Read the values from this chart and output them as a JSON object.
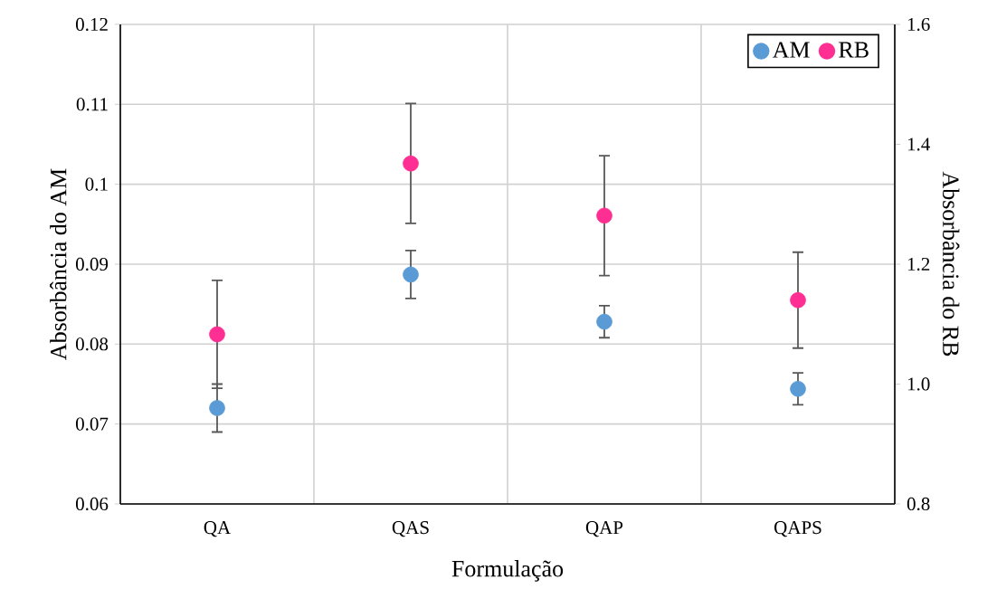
{
  "chart_data": {
    "type": "scatter",
    "xlabel": "Formulação",
    "ylabel": "Absorbância do AM",
    "y2label": "Absorbância do RB",
    "categories": [
      "QA",
      "QAS",
      "QAP",
      "QAPS"
    ],
    "series": [
      {
        "name": "AM",
        "color": "#5b9bd5",
        "values": [
          0.072,
          0.0887,
          0.0828,
          0.0744
        ],
        "errors": [
          0.003,
          0.003,
          0.002,
          0.002
        ]
      },
      {
        "name": "RB",
        "color": "#ff2e93",
        "axis": "y2",
        "values": [
          1.083,
          1.368,
          1.281,
          1.14
        ],
        "errors": [
          0.09,
          0.1,
          0.1,
          0.08
        ]
      }
    ],
    "ylim": [
      0.06,
      0.12
    ],
    "yticks": [
      0.06,
      0.07,
      0.08,
      0.09,
      0.1,
      0.11,
      0.12
    ],
    "y2lim": [
      0.8,
      1.6
    ],
    "y2ticks": [
      0.8,
      {
        "value": 1,
        "label": "1.0"
      },
      1.2,
      1.4,
      1.6
    ],
    "grid": true,
    "legend": "top right"
  }
}
